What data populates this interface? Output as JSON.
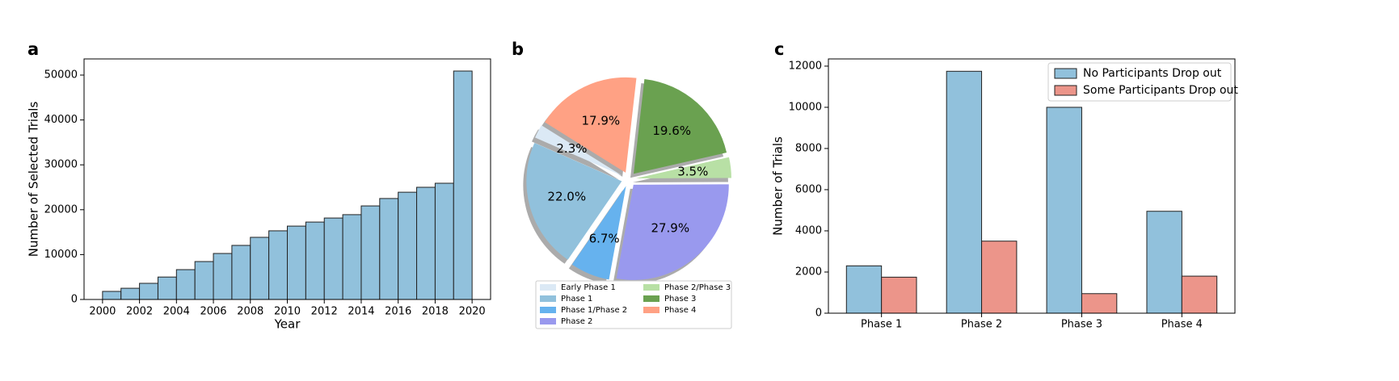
{
  "chart_data": [
    {
      "type": "histogram",
      "label": "a",
      "xlabel": "Year",
      "ylabel": "Number of Selected Trials",
      "color": "#91c1dc",
      "bins": [
        2000,
        2001,
        2002,
        2003,
        2004,
        2005,
        2006,
        2007,
        2008,
        2009,
        2010,
        2011,
        2012,
        2013,
        2014,
        2015,
        2016,
        2017,
        2018,
        2019,
        2020
      ],
      "values": [
        1800,
        2500,
        3600,
        5000,
        6650,
        8450,
        10250,
        12050,
        13850,
        15300,
        16350,
        17250,
        18150,
        18900,
        20850,
        22500,
        23900,
        25000,
        25900,
        50900
      ],
      "xlim": [
        1999,
        2021
      ],
      "xticks": [
        2000,
        2002,
        2004,
        2006,
        2008,
        2010,
        2012,
        2014,
        2016,
        2018,
        2020
      ],
      "ylim": [
        0,
        53600
      ],
      "yticks": [
        0,
        10000,
        20000,
        30000,
        40000,
        50000
      ]
    },
    {
      "type": "pie",
      "label": "b",
      "categories": [
        "Early Phase 1",
        "Phase 1",
        "Phase 1/Phase 2",
        "Phase 2",
        "Phase 2/Phase 3",
        "Phase 3",
        "Phase 4"
      ],
      "values": [
        2.3,
        22.0,
        6.7,
        27.9,
        3.5,
        19.6,
        17.9
      ],
      "value_labels": [
        "2.3%",
        "22.0%",
        "6.7%",
        "27.9%",
        "3.5%",
        "19.6%",
        "17.9%"
      ],
      "colors": [
        "#dbe9f5",
        "#91c1dc",
        "#66b2ee",
        "#9999ee",
        "#b8e0a5",
        "#6aa150",
        "#ffa184"
      ],
      "legend": "lower center"
    },
    {
      "type": "bar",
      "label": "c",
      "ylabel": "Number of Trials",
      "categories": [
        "Phase 1",
        "Phase 2",
        "Phase 3",
        "Phase 4"
      ],
      "series": [
        {
          "name": "No Participants Drop out",
          "color": "#91c1dc",
          "values": [
            2300,
            11750,
            10000,
            4950
          ]
        },
        {
          "name": "Some Participants Drop out",
          "color": "#ec958a",
          "values": [
            1750,
            3500,
            950,
            1800
          ]
        }
      ],
      "ylim": [
        0,
        12350
      ],
      "yticks": [
        0,
        2000,
        4000,
        6000,
        8000,
        10000,
        12000
      ],
      "legend": "upper right"
    }
  ]
}
